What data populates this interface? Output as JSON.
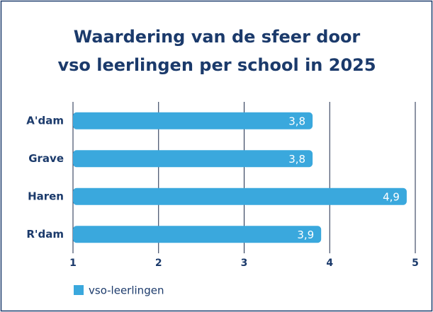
{
  "chart_data": {
    "type": "bar",
    "orientation": "horizontal",
    "title": [
      "Waardering van de sfeer door",
      "vso leerlingen per school in 2025"
    ],
    "categories": [
      "A'dam",
      "Grave",
      "Haren",
      "R'dam"
    ],
    "series": [
      {
        "name": "vso-leerlingen",
        "color": "#3aa8dd",
        "values": [
          3.8,
          3.8,
          4.9,
          3.9
        ],
        "value_labels": [
          "3,8",
          "3,8",
          "4,9",
          "3,9"
        ]
      }
    ],
    "xlim": [
      1,
      5
    ],
    "xticks": [
      1,
      2,
      3,
      4,
      5
    ],
    "grid": true,
    "legend": "bottom-left"
  }
}
